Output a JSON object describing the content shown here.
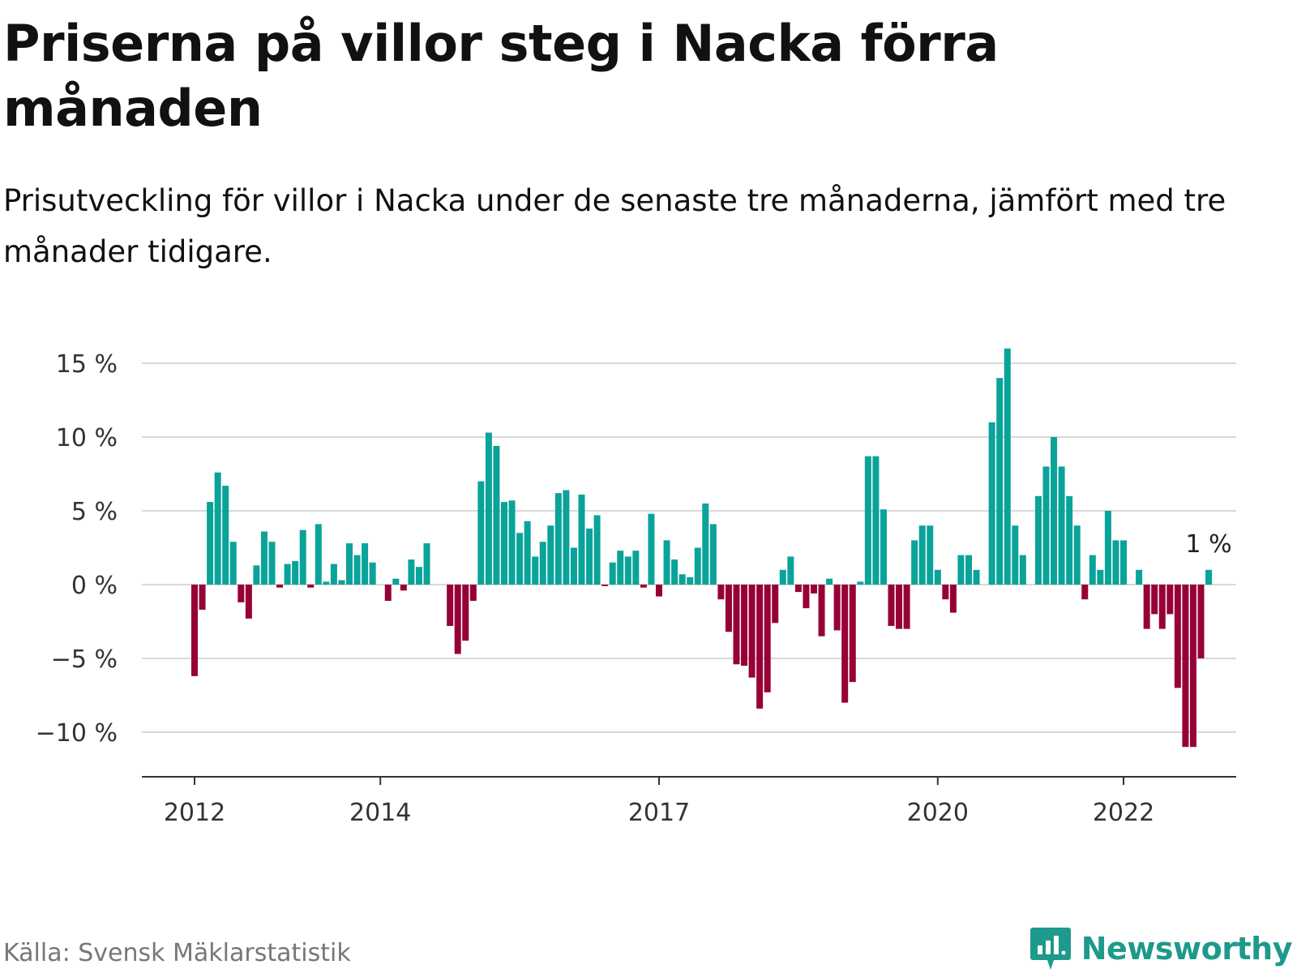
{
  "title": "Priserna på villor steg i Nacka förra månaden",
  "subtitle": "Prisutveckling för villor i Nacka under de senaste tre månaderna, jämfört med tre månader tidigare.",
  "source": "Källa: Svensk Mäklarstatistik",
  "brand": {
    "name": "Newsworthy",
    "logo_icon": "bar-chart-speech-bubble-icon",
    "color": "#1d9a8c"
  },
  "colors": {
    "positive": "#0aa39a",
    "negative": "#960037",
    "grid": "#d9d9d9",
    "axis": "#333333"
  },
  "chart_data": {
    "type": "bar",
    "title": "Priserna på villor steg i Nacka förra månaden",
    "subtitle": "Prisutveckling för villor i Nacka under de senaste tre månaderna, jämfört med tre månader tidigare.",
    "xlabel": "",
    "ylabel": "",
    "unit": "%",
    "ylim": [
      -12.5,
      16
    ],
    "yticks": [
      {
        "value": 15,
        "label": "15 %"
      },
      {
        "value": 10,
        "label": "10 %"
      },
      {
        "value": 5,
        "label": "5 %"
      },
      {
        "value": 0,
        "label": "0 %"
      },
      {
        "value": -5,
        "label": "−5 %"
      },
      {
        "value": -10,
        "label": "−10 %"
      }
    ],
    "xticks": [
      "2012",
      "2014",
      "2017",
      "2020",
      "2022"
    ],
    "grid": true,
    "legend": "none",
    "start_date": "2011-06",
    "values": [
      null,
      null,
      null,
      null,
      null,
      null,
      null,
      -6.2,
      -1.7,
      5.6,
      7.6,
      6.7,
      2.9,
      -1.2,
      -2.3,
      1.3,
      3.6,
      2.9,
      -0.2,
      1.4,
      1.6,
      3.7,
      -0.2,
      4.1,
      0.2,
      1.4,
      0.3,
      2.8,
      2.0,
      2.8,
      1.5,
      null,
      -1.1,
      0.4,
      -0.4,
      1.7,
      1.2,
      2.8,
      null,
      null,
      -2.8,
      -4.7,
      -3.8,
      -1.1,
      7.0,
      10.3,
      9.4,
      5.6,
      5.7,
      3.5,
      4.3,
      1.9,
      2.9,
      4.0,
      6.2,
      6.4,
      2.5,
      6.1,
      3.8,
      4.7,
      -0.1,
      1.5,
      2.3,
      1.9,
      2.3,
      -0.2,
      4.8,
      -0.8,
      3.0,
      1.7,
      0.7,
      0.5,
      2.5,
      5.5,
      4.1,
      -1.0,
      -3.2,
      -5.4,
      -5.5,
      -6.3,
      -8.4,
      -7.3,
      -2.6,
      1.0,
      1.9,
      -0.5,
      -1.6,
      -0.6,
      -3.5,
      0.4,
      -3.1,
      -8.0,
      -6.6,
      0.2,
      8.7,
      8.7,
      5.1,
      -2.8,
      -3.0,
      -3.0,
      3.0,
      4.0,
      4.0,
      1.0,
      -1.0,
      -1.9,
      2.0,
      2.0,
      1.0,
      null,
      11.0,
      14.0,
      16.0,
      4.0,
      2.0,
      null,
      6.0,
      8.0,
      10.0,
      8.0,
      6.0,
      4.0,
      -1.0,
      2.0,
      1.0,
      5.0,
      3.0,
      3.0,
      null,
      1.0,
      -3.0,
      -2.0,
      -3.0,
      -2.0,
      -7.0,
      -11.0,
      -11.0,
      -5.0,
      1.0
    ],
    "annotation": {
      "label": "1 %",
      "value": 1.0,
      "target": "last"
    }
  }
}
